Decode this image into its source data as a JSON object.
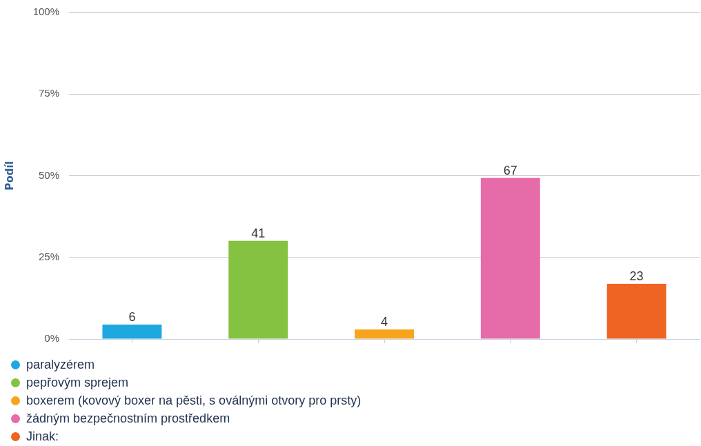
{
  "chart_data": {
    "type": "bar",
    "ylabel": "Podíl",
    "categories": [
      null,
      null,
      null,
      null,
      null
    ],
    "series": [
      {
        "name": "paralyzérem",
        "color": "#1ea8e0",
        "values": [
          4.4,
          null,
          null,
          null,
          null
        ]
      },
      {
        "name": "pepřovým sprejem",
        "color": "#86c242",
        "values": [
          null,
          30.1,
          null,
          null,
          null
        ]
      },
      {
        "name": "boxerem (kovový boxer na pěsti, s oválnými otvory pro prsty)",
        "color": "#f8a41c",
        "values": [
          null,
          null,
          2.9,
          null,
          null
        ]
      },
      {
        "name": "žádným bezpečnostním prostředkem",
        "color": "#e56ca8",
        "values": [
          null,
          null,
          null,
          49.3,
          null
        ]
      },
      {
        "name": "Jinak:",
        "color": "#ef6423",
        "values": [
          null,
          null,
          null,
          null,
          16.9
        ]
      }
    ],
    "annotations": [
      {
        "text": "6",
        "y": 4.4
      },
      {
        "text": "41",
        "y": 30.1
      },
      {
        "text": "4",
        "y": 2.9
      },
      {
        "text": "67",
        "y": 49.3
      },
      {
        "text": "23",
        "y": 16.9
      }
    ],
    "ylim": [
      0,
      100
    ],
    "yticks": [
      {
        "value": 0,
        "label": "0%"
      },
      {
        "value": 25,
        "label": "25%"
      },
      {
        "value": 50,
        "label": "50%"
      },
      {
        "value": 75,
        "label": "75%"
      },
      {
        "value": 100,
        "label": "100%"
      }
    ],
    "grid": "y",
    "legend": "bottom left",
    "tick_labels": "y"
  }
}
